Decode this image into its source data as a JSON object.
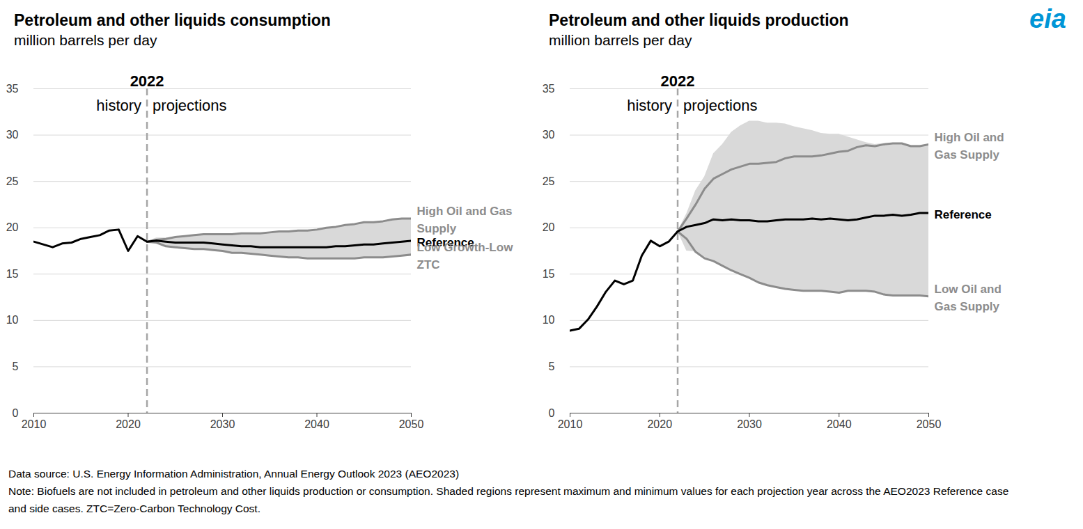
{
  "chart_data": [
    {
      "type": "line",
      "title": "Petroleum and other liquids consumption",
      "subtitle": "million barrels per day",
      "x": [
        2010,
        2011,
        2012,
        2013,
        2014,
        2015,
        2016,
        2017,
        2018,
        2019,
        2020,
        2021,
        2022,
        2023,
        2024,
        2025,
        2026,
        2027,
        2028,
        2029,
        2030,
        2031,
        2032,
        2033,
        2034,
        2035,
        2036,
        2037,
        2038,
        2039,
        2040,
        2041,
        2042,
        2043,
        2044,
        2045,
        2046,
        2047,
        2048,
        2049,
        2050
      ],
      "xlim": [
        2010,
        2050
      ],
      "xticks": [
        2010,
        2020,
        2030,
        2040,
        2050
      ],
      "ylim": [
        0,
        35
      ],
      "yticks": [
        0,
        5,
        10,
        15,
        20,
        25,
        30,
        35
      ],
      "grid": true,
      "divider": {
        "x": 2022,
        "label": "2022",
        "left_label": "history",
        "right_label": "projections"
      },
      "series": [
        {
          "name": "Reference",
          "color": "#000000",
          "values": [
            18.5,
            18.2,
            17.9,
            18.3,
            18.4,
            18.8,
            19.0,
            19.2,
            19.7,
            19.8,
            17.5,
            19.1,
            18.5,
            18.6,
            18.5,
            18.4,
            18.4,
            18.4,
            18.4,
            18.3,
            18.2,
            18.1,
            18.0,
            18.0,
            17.9,
            17.9,
            17.9,
            17.9,
            17.9,
            17.9,
            17.9,
            17.9,
            18.0,
            18.0,
            18.1,
            18.2,
            18.2,
            18.3,
            18.4,
            18.5,
            18.6
          ]
        },
        {
          "name": "High Oil and Gas Supply",
          "color": "#8c8c8c",
          "values": [
            null,
            null,
            null,
            null,
            null,
            null,
            null,
            null,
            null,
            null,
            null,
            null,
            18.5,
            18.7,
            18.8,
            19.0,
            19.1,
            19.2,
            19.3,
            19.3,
            19.3,
            19.3,
            19.4,
            19.4,
            19.4,
            19.5,
            19.6,
            19.6,
            19.7,
            19.7,
            19.8,
            20.0,
            20.1,
            20.3,
            20.4,
            20.6,
            20.6,
            20.7,
            20.9,
            21.0,
            21.0
          ]
        },
        {
          "name": "Low Growth-Low ZTC",
          "color": "#8c8c8c",
          "values": [
            null,
            null,
            null,
            null,
            null,
            null,
            null,
            null,
            null,
            null,
            null,
            null,
            18.5,
            18.4,
            18.0,
            17.9,
            17.8,
            17.7,
            17.7,
            17.6,
            17.5,
            17.3,
            17.3,
            17.2,
            17.1,
            17.0,
            16.9,
            16.8,
            16.8,
            16.7,
            16.7,
            16.7,
            16.7,
            16.7,
            16.7,
            16.8,
            16.8,
            16.8,
            16.9,
            17.0,
            17.1
          ]
        }
      ],
      "band_max": [
        null,
        null,
        null,
        null,
        null,
        null,
        null,
        null,
        null,
        null,
        null,
        null,
        18.5,
        18.9,
        18.9,
        19.0,
        19.1,
        19.2,
        19.3,
        19.3,
        19.3,
        19.3,
        19.4,
        19.4,
        19.4,
        19.5,
        19.6,
        19.6,
        19.7,
        19.7,
        19.8,
        20.0,
        20.1,
        20.3,
        20.4,
        20.6,
        20.6,
        20.7,
        20.9,
        21.0,
        21.0
      ],
      "band_min": [
        null,
        null,
        null,
        null,
        null,
        null,
        null,
        null,
        null,
        null,
        null,
        null,
        18.5,
        18.4,
        18.0,
        17.9,
        17.8,
        17.7,
        17.7,
        17.6,
        17.5,
        17.3,
        17.3,
        17.2,
        17.1,
        17.0,
        16.9,
        16.8,
        16.8,
        16.7,
        16.7,
        16.7,
        16.7,
        16.7,
        16.7,
        16.8,
        16.8,
        16.8,
        16.9,
        17.0,
        17.1
      ]
    },
    {
      "type": "line",
      "title": "Petroleum and other liquids production",
      "subtitle": "million barrels per day",
      "x": [
        2010,
        2011,
        2012,
        2013,
        2014,
        2015,
        2016,
        2017,
        2018,
        2019,
        2020,
        2021,
        2022,
        2023,
        2024,
        2025,
        2026,
        2027,
        2028,
        2029,
        2030,
        2031,
        2032,
        2033,
        2034,
        2035,
        2036,
        2037,
        2038,
        2039,
        2040,
        2041,
        2042,
        2043,
        2044,
        2045,
        2046,
        2047,
        2048,
        2049,
        2050
      ],
      "xlim": [
        2010,
        2050
      ],
      "xticks": [
        2010,
        2020,
        2030,
        2040,
        2050
      ],
      "ylim": [
        0,
        35
      ],
      "yticks": [
        0,
        5,
        10,
        15,
        20,
        25,
        30,
        35
      ],
      "grid": true,
      "divider": {
        "x": 2022,
        "label": "2022",
        "left_label": "history",
        "right_label": "projections"
      },
      "series": [
        {
          "name": "Reference",
          "color": "#000000",
          "values": [
            8.9,
            9.1,
            10.1,
            11.5,
            13.1,
            14.3,
            13.9,
            14.3,
            17.0,
            18.6,
            18.0,
            18.5,
            19.6,
            20.1,
            20.3,
            20.5,
            20.9,
            20.8,
            20.9,
            20.8,
            20.8,
            20.7,
            20.7,
            20.8,
            20.9,
            20.9,
            20.9,
            21.0,
            20.9,
            21.0,
            20.9,
            20.8,
            20.9,
            21.1,
            21.3,
            21.3,
            21.4,
            21.3,
            21.4,
            21.6,
            21.6
          ]
        },
        {
          "name": "High Oil and Gas Supply",
          "color": "#8c8c8c",
          "values": [
            null,
            null,
            null,
            null,
            null,
            null,
            null,
            null,
            null,
            null,
            null,
            null,
            19.6,
            21.0,
            22.5,
            24.2,
            25.3,
            25.8,
            26.3,
            26.6,
            26.9,
            26.9,
            27.0,
            27.1,
            27.5,
            27.7,
            27.7,
            27.7,
            27.8,
            28.0,
            28.2,
            28.3,
            28.7,
            28.9,
            28.8,
            29.0,
            29.1,
            29.1,
            28.8,
            28.8,
            29.0
          ]
        },
        {
          "name": "Low Oil and Gas Supply",
          "color": "#8c8c8c",
          "values": [
            null,
            null,
            null,
            null,
            null,
            null,
            null,
            null,
            null,
            null,
            null,
            null,
            19.6,
            18.8,
            17.4,
            16.7,
            16.4,
            15.9,
            15.4,
            15.0,
            14.6,
            14.1,
            13.8,
            13.6,
            13.4,
            13.3,
            13.2,
            13.2,
            13.2,
            13.1,
            13.0,
            13.2,
            13.2,
            13.2,
            13.1,
            12.8,
            12.7,
            12.7,
            12.7,
            12.7,
            12.6
          ]
        }
      ],
      "band_max": [
        null,
        null,
        null,
        null,
        null,
        null,
        null,
        null,
        null,
        null,
        null,
        null,
        19.6,
        21.5,
        24.0,
        25.5,
        28.0,
        29.0,
        30.3,
        31.0,
        31.5,
        31.5,
        31.3,
        31.3,
        31.2,
        30.9,
        30.7,
        30.5,
        30.2,
        30.1,
        30.1,
        29.8,
        29.5,
        29.2,
        29.0,
        29.1,
        29.1,
        29.1,
        28.9,
        28.9,
        29.0
      ],
      "band_min": [
        null,
        null,
        null,
        null,
        null,
        null,
        null,
        null,
        null,
        null,
        null,
        null,
        19.6,
        17.5,
        17.4,
        16.7,
        16.4,
        15.9,
        15.4,
        15.0,
        14.6,
        14.1,
        13.8,
        13.6,
        13.4,
        13.3,
        13.2,
        13.2,
        13.2,
        13.1,
        13.0,
        13.2,
        13.2,
        13.2,
        13.1,
        12.8,
        12.7,
        12.7,
        12.7,
        12.7,
        12.6
      ]
    }
  ],
  "logo": "eia",
  "source": "Data source: U.S. Energy Information Administration, Annual Energy Outlook 2023 (AEO2023)",
  "note": "Note: Biofuels are not included in petroleum and other liquids production or consumption. Shaded regions represent maximum and minimum values for each projection year across the AEO2023 Reference case and side cases. ZTC=Zero-Carbon Technology Cost."
}
